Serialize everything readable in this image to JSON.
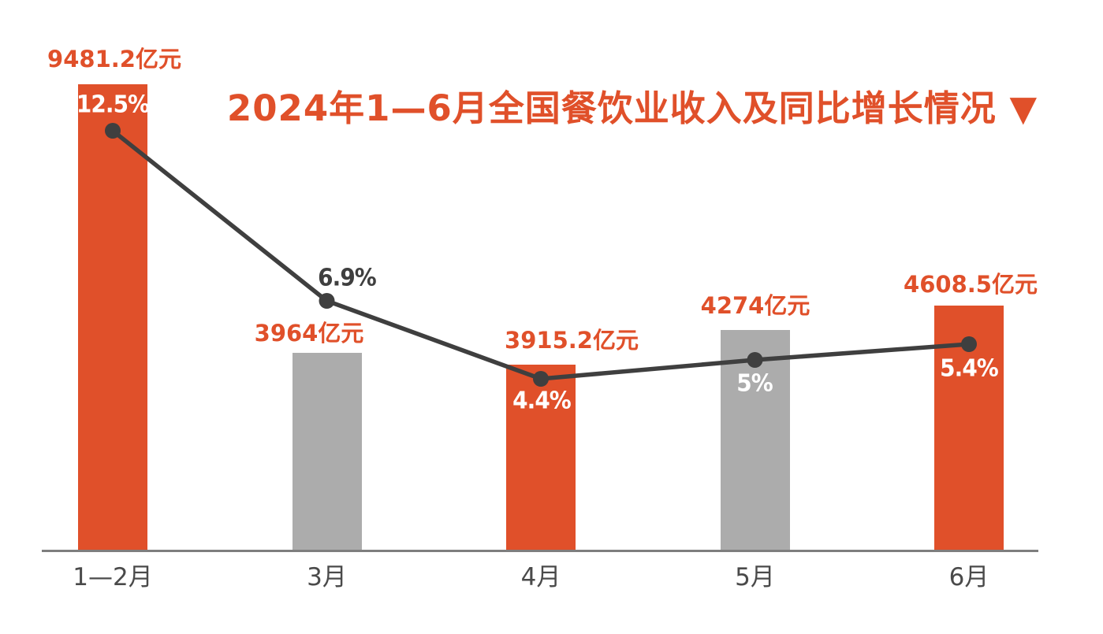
{
  "title": {
    "text": "2024年1—6月全国餐饮业收入及同比增长情况",
    "marker": "▼"
  },
  "colors": {
    "orange": "#E0502A",
    "gray": "#ACACAC",
    "dark": "#3F3F3F",
    "axis": "#7E7E7E",
    "white": "#FFFFFF"
  },
  "chart_data": {
    "type": "bar",
    "title": "2024年1—6月全国餐饮业收入及同比增长情况",
    "categories": [
      "1—2月",
      "3月",
      "4月",
      "5月",
      "6月"
    ],
    "series": [
      {
        "name": "全国餐饮业收入",
        "type": "bar",
        "unit": "亿元",
        "values": [
          9481.2,
          3964,
          3915.2,
          4274,
          4608.5
        ],
        "labels": [
          "9481.2亿元",
          "3964亿元",
          "3915.2亿元",
          "4274亿元",
          "4608.5亿元"
        ],
        "colors": [
          "#E0502A",
          "#ACACAC",
          "#E0502A",
          "#ACACAC",
          "#E0502A"
        ]
      },
      {
        "name": "同比增长",
        "type": "line",
        "unit": "%",
        "values": [
          12.5,
          6.9,
          4.4,
          5,
          5.4
        ],
        "labels": [
          "12.5%",
          "6.9%",
          "4.4%",
          "5%",
          "5.4%"
        ]
      }
    ],
    "legend": "none",
    "grid": false,
    "xlabel": "",
    "ylabel": ""
  }
}
